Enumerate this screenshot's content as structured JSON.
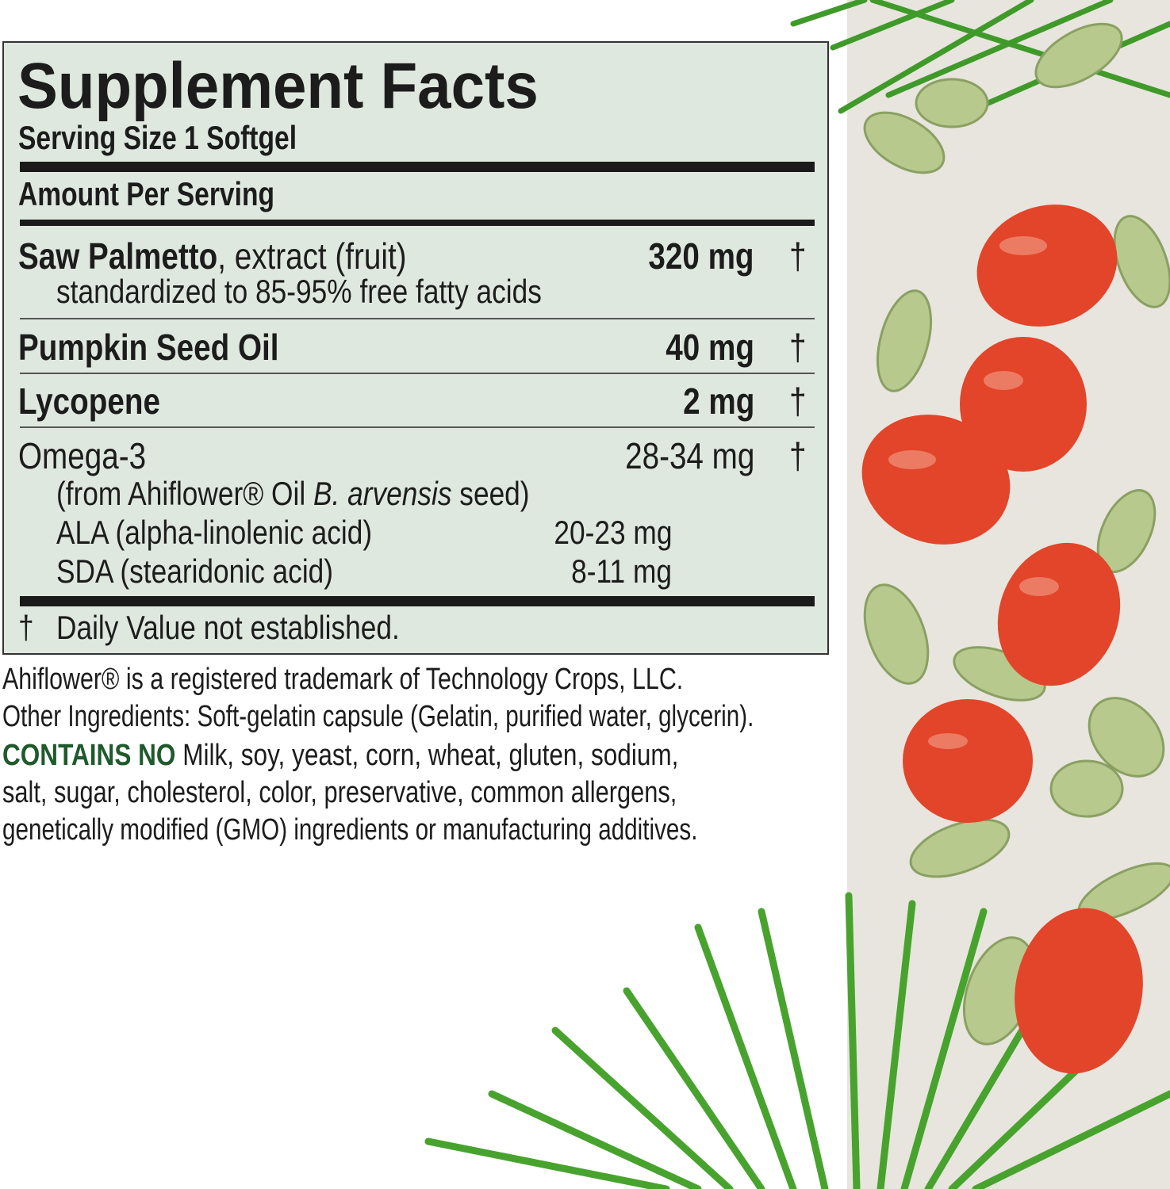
{
  "label": {
    "title": "Supplement Facts",
    "serving_size": "Serving Size 1 Softgel",
    "amount_per_serving": "Amount Per Serving",
    "rows": [
      {
        "name": "Saw Palmetto",
        "name_suffix": ", extract (fruit)",
        "sub": "standardized to 85-95% free fatty acids",
        "amount": "320",
        "unit": "mg",
        "dv": "†"
      },
      {
        "name": "Pumpkin Seed Oil",
        "amount": "40",
        "unit": "mg",
        "dv": "†"
      },
      {
        "name": "Lycopene",
        "amount": "2",
        "unit": "mg",
        "dv": "†"
      },
      {
        "name": "Omega-3",
        "amount": "28-34",
        "unit": "mg",
        "dv": "†",
        "source_prefix": "(from Ahiflower® Oil ",
        "source_italic": "B. arvensis",
        "source_suffix": " seed)",
        "subs": [
          {
            "name": "ALA (alpha-linolenic acid)",
            "amount": "20-23 mg"
          },
          {
            "name": "SDA (stearidonic acid)",
            "amount": "8-11 mg"
          }
        ]
      }
    ],
    "footnote_symbol": "†",
    "footnote": "Daily Value not established."
  },
  "below": {
    "trademark": "Ahiflower® is a registered trademark of Technology Crops, LLC.",
    "other_ingredients": "Other Ingredients: Soft-gelatin capsule (Gelatin, purified water, glycerin).",
    "contains_no_label": "CONTAINS NO",
    "contains_no_line1": " Milk, soy, yeast, corn, wheat, gluten, sodium,",
    "contains_no_line2": "salt, sugar, cholesterol, color, preservative, common allergens,",
    "contains_no_line3": "genetically modified (GMO) ingredients or manufacturing additives."
  },
  "colors": {
    "label_bg": "#dfe8df",
    "accent_green": "#1f5a2c",
    "berry": "#e2452a",
    "panel": "#e7e5dd"
  }
}
